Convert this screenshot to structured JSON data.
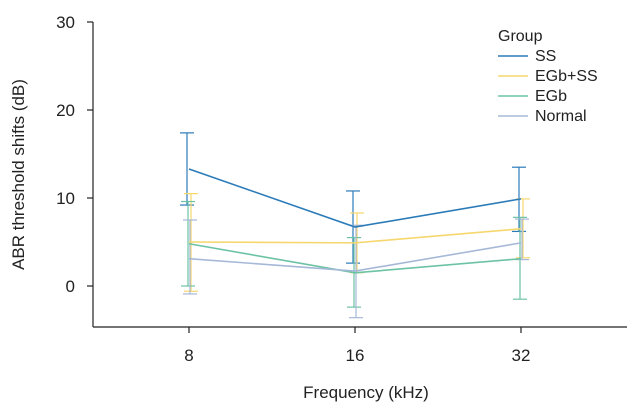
{
  "chart_data": {
    "type": "line",
    "title": "",
    "xlabel": "Frequency (kHz)",
    "ylabel": "ABR threshold shifts (dB)",
    "categories": [
      "8",
      "16",
      "32"
    ],
    "ylim": [
      -5,
      30
    ],
    "yticks": [
      0,
      10,
      20,
      30
    ],
    "grid": false,
    "error_bars": true,
    "legend": {
      "title": "Group",
      "placement": "top-right"
    },
    "series": [
      {
        "name": "SS",
        "color": "#2b7bb9",
        "values": [
          13.3,
          6.7,
          9.9
        ],
        "lower": [
          9.2,
          2.6,
          6.2
        ],
        "upper": [
          17.4,
          10.8,
          13.5
        ]
      },
      {
        "name": "EGb+SS",
        "color": "#f5d76e",
        "values": [
          5.0,
          4.9,
          6.5
        ],
        "lower": [
          -0.6,
          1.5,
          3.2
        ],
        "upper": [
          10.5,
          8.3,
          9.9
        ]
      },
      {
        "name": "EGb",
        "color": "#6cc3a4",
        "values": [
          4.8,
          1.5,
          3.1
        ],
        "lower": [
          0.0,
          -2.4,
          -1.5
        ],
        "upper": [
          9.6,
          5.5,
          7.8
        ]
      },
      {
        "name": "Normal",
        "color": "#a6b8d8",
        "values": [
          3.1,
          1.7,
          4.9
        ],
        "lower": [
          -0.9,
          -3.6,
          3.0
        ],
        "upper": [
          7.5,
          6.9,
          7.6
        ]
      }
    ]
  }
}
